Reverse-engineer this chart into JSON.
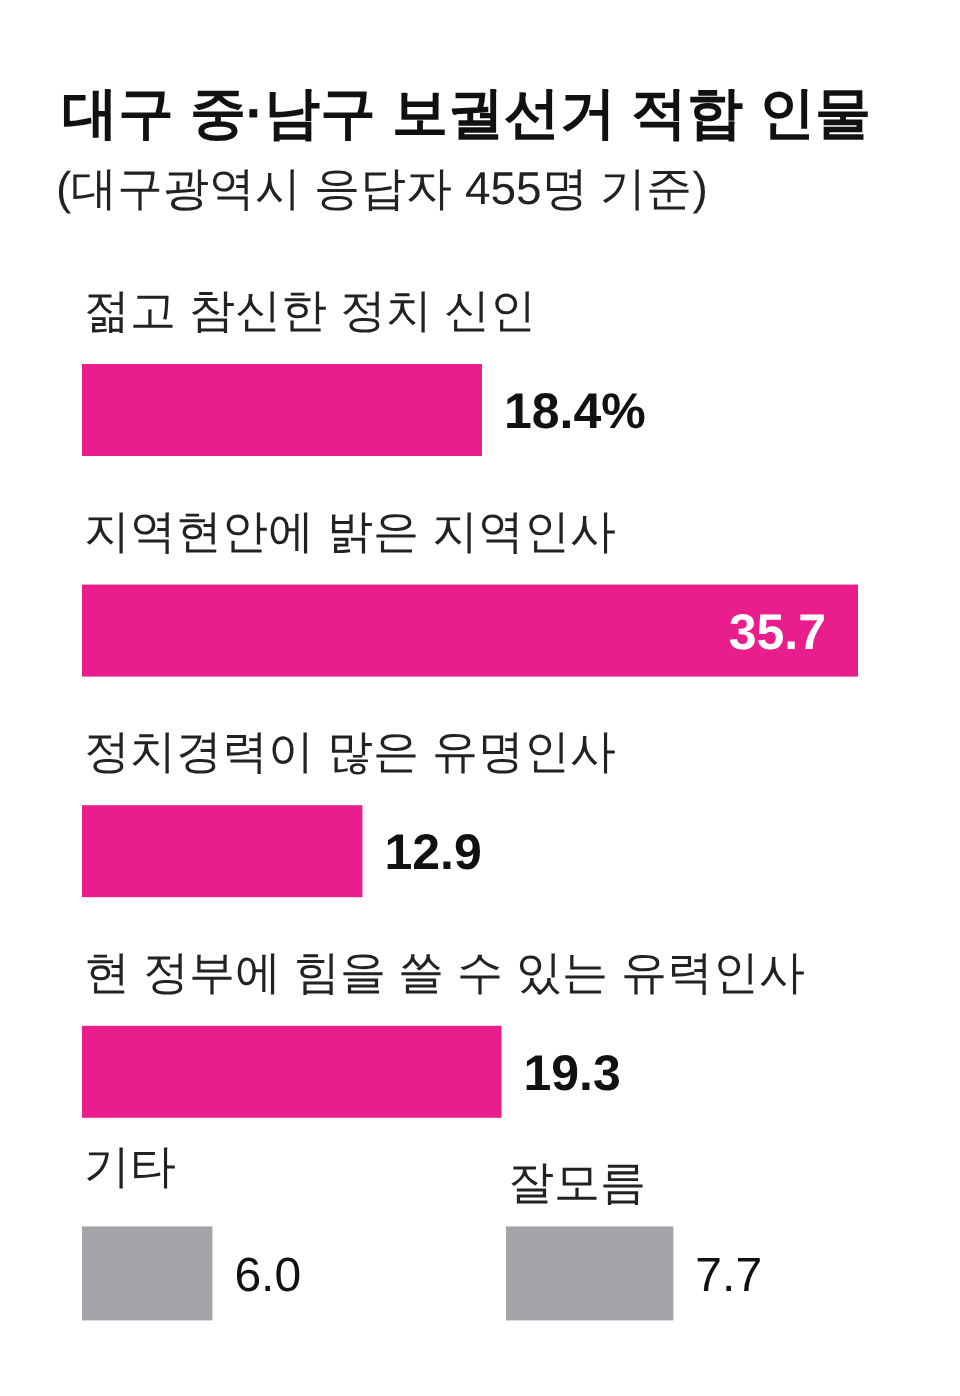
{
  "chart_data": [
    {
      "type": "bar",
      "orientation": "horizontal",
      "title": "대구 중·남구 보궐선거 적합 인물",
      "subtitle": "(대구광역시 응답자 455명 기준)",
      "categories": [
        "젊고 참신한 정치 신인",
        "지역현안에 밝은 지역인사",
        "정치경력이 많은 유명인사",
        "현 정부에 힘을 쓸 수 있는 유력인사"
      ],
      "values": [
        18.4,
        35.7,
        12.9,
        19.3
      ],
      "colors": [
        "#e91e8c",
        "#e91e8c",
        "#e91e8c",
        "#e91e8c"
      ],
      "value_labels": [
        "18.4%",
        "35.7",
        "12.9",
        "19.3"
      ]
    },
    {
      "type": "bar",
      "orientation": "horizontal",
      "categories": [
        "기타"
      ],
      "values": [
        6.0
      ],
      "colors": [
        "#a3a4a8"
      ],
      "value_labels": [
        "6.0"
      ]
    },
    {
      "type": "bar",
      "orientation": "horizontal",
      "categories": [
        "잘모름"
      ],
      "values": [
        7.7
      ],
      "colors": [
        "#a3a4a8"
      ],
      "value_labels": [
        "7.7"
      ]
    }
  ]
}
